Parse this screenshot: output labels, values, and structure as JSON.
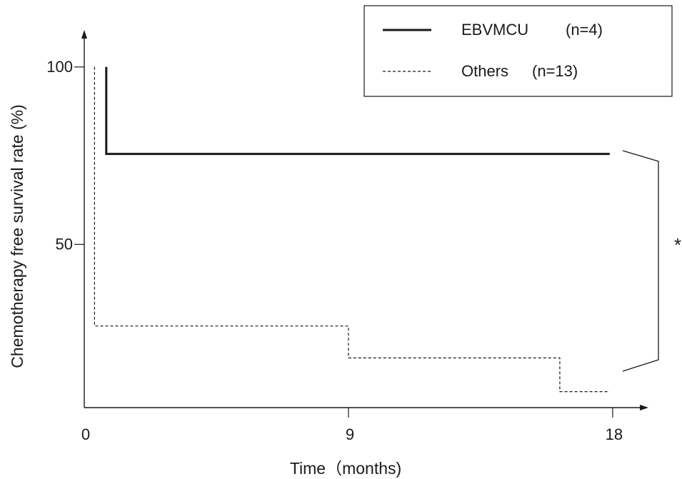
{
  "chart_data": {
    "type": "line",
    "subtype": "kaplan-meier step",
    "title": "",
    "xlabel": "Time（months)",
    "ylabel": "Chemotherapy free survival rate (%)",
    "xlim": [
      0,
      19
    ],
    "ylim": [
      4,
      106
    ],
    "x_ticks": [
      {
        "value": 0,
        "label": "0"
      },
      {
        "value": 9,
        "label": "9"
      },
      {
        "value": 18,
        "label": "18"
      }
    ],
    "y_ticks": [
      {
        "value": 100,
        "label": "100"
      },
      {
        "value": 50,
        "label": "50"
      }
    ],
    "grid": false,
    "legend_position": "top-right",
    "series": [
      {
        "name": "EBVMCU",
        "n_label": "(n=4)",
        "style": "solid",
        "color": "#1a1a1a",
        "points": [
          [
            0.75,
            100
          ],
          [
            0.75,
            75.5
          ],
          [
            17.9,
            75.5
          ]
        ]
      },
      {
        "name": "Others",
        "n_label": "(n=13)",
        "style": "dashed",
        "color": "#1a1a1a",
        "points": [
          [
            0.35,
            100
          ],
          [
            0.35,
            27
          ],
          [
            9.0,
            27
          ],
          [
            9.0,
            18
          ],
          [
            16.2,
            18
          ],
          [
            16.2,
            8.5
          ],
          [
            17.9,
            8.5
          ]
        ]
      }
    ],
    "annotations": [
      {
        "type": "significance-bracket",
        "label": "*",
        "between": [
          "EBVMCU",
          "Others"
        ]
      }
    ]
  }
}
